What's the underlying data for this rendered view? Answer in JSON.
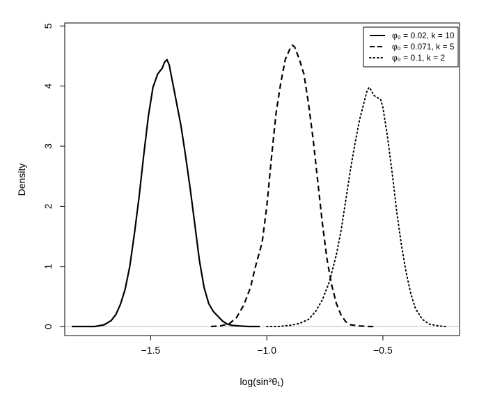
{
  "chart_data": {
    "type": "line",
    "title": "",
    "xlabel": "log(sin²θ₁)",
    "ylabel": "Density",
    "xlim": [
      -1.87,
      -0.17
    ],
    "ylim": [
      -0.15,
      5.05
    ],
    "x_ticks": [
      -1.5,
      -1.0,
      -0.5
    ],
    "x_tick_labels": [
      "−1.5",
      "−1.0",
      "−0.5"
    ],
    "y_ticks": [
      0,
      1,
      2,
      3,
      4,
      5
    ],
    "y_tick_labels": [
      "0",
      "1",
      "2",
      "3",
      "4",
      "5"
    ],
    "grid": false,
    "zero_line": true,
    "legend_position": "top-right",
    "series": [
      {
        "name": "φ₀ = 0.02, k = 10",
        "style": "solid",
        "x": [
          -1.84,
          -1.79,
          -1.74,
          -1.7,
          -1.67,
          -1.65,
          -1.63,
          -1.61,
          -1.59,
          -1.57,
          -1.55,
          -1.53,
          -1.51,
          -1.49,
          -1.47,
          -1.46,
          -1.45,
          -1.44,
          -1.43,
          -1.42,
          -1.41,
          -1.4,
          -1.39,
          -1.37,
          -1.35,
          -1.33,
          -1.31,
          -1.29,
          -1.27,
          -1.25,
          -1.23,
          -1.21,
          -1.19,
          -1.17,
          -1.15,
          -1.12,
          -1.08,
          -1.03
        ],
        "y": [
          0.0,
          0.0,
          0.0,
          0.03,
          0.1,
          0.2,
          0.37,
          0.62,
          1.0,
          1.55,
          2.15,
          2.85,
          3.5,
          3.98,
          4.2,
          4.25,
          4.3,
          4.4,
          4.44,
          4.35,
          4.15,
          3.95,
          3.75,
          3.35,
          2.85,
          2.3,
          1.7,
          1.1,
          0.65,
          0.38,
          0.25,
          0.17,
          0.09,
          0.04,
          0.02,
          0.01,
          0.0,
          0.0
        ]
      },
      {
        "name": "φ₀ = 0.071, k = 5",
        "style": "dashed",
        "x": [
          -1.24,
          -1.2,
          -1.16,
          -1.13,
          -1.1,
          -1.07,
          -1.05,
          -1.02,
          -1.0,
          -0.98,
          -0.96,
          -0.94,
          -0.92,
          -0.9,
          -0.89,
          -0.88,
          -0.87,
          -0.86,
          -0.84,
          -0.82,
          -0.8,
          -0.78,
          -0.76,
          -0.74,
          -0.72,
          -0.7,
          -0.68,
          -0.66,
          -0.64,
          -0.62,
          -0.6,
          -0.56,
          -0.53
        ],
        "y": [
          0.0,
          0.01,
          0.05,
          0.15,
          0.35,
          0.65,
          0.98,
          1.4,
          2.0,
          2.8,
          3.55,
          4.05,
          4.45,
          4.62,
          4.68,
          4.65,
          4.55,
          4.45,
          4.2,
          3.7,
          3.1,
          2.4,
          1.7,
          1.1,
          0.68,
          0.38,
          0.19,
          0.08,
          0.03,
          0.02,
          0.01,
          0.0,
          0.0
        ]
      },
      {
        "name": "φ₀ = 0.1, k = 2",
        "style": "dotted",
        "x": [
          -1.0,
          -0.95,
          -0.9,
          -0.86,
          -0.82,
          -0.79,
          -0.76,
          -0.73,
          -0.7,
          -0.68,
          -0.66,
          -0.64,
          -0.62,
          -0.6,
          -0.58,
          -0.57,
          -0.56,
          -0.55,
          -0.54,
          -0.53,
          -0.51,
          -0.5,
          -0.48,
          -0.46,
          -0.44,
          -0.42,
          -0.4,
          -0.38,
          -0.36,
          -0.33,
          -0.3,
          -0.26,
          -0.23
        ],
        "y": [
          0.0,
          0.0,
          0.02,
          0.05,
          0.12,
          0.25,
          0.45,
          0.75,
          1.2,
          1.6,
          2.1,
          2.6,
          3.05,
          3.45,
          3.75,
          3.9,
          3.98,
          3.93,
          3.85,
          3.82,
          3.78,
          3.65,
          3.15,
          2.55,
          1.9,
          1.35,
          0.9,
          0.55,
          0.3,
          0.12,
          0.04,
          0.01,
          0.0
        ]
      }
    ]
  }
}
